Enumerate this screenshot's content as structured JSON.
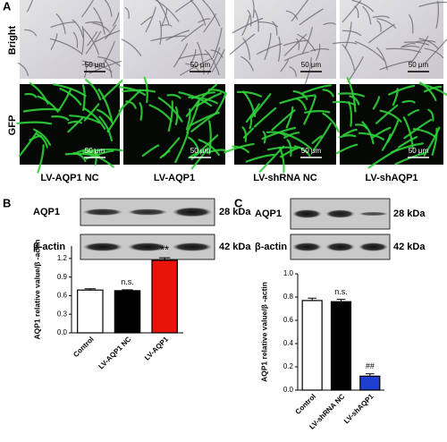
{
  "panel_a": {
    "label": "A",
    "row_labels": [
      "Bright",
      "GFP"
    ],
    "scale_bar": "50 μm",
    "columns": [
      "LV-AQP1 NC",
      "LV-AQP1",
      "LV-shRNA NC",
      "LV-shAQP1"
    ]
  },
  "panel_b": {
    "label": "B",
    "blots": [
      {
        "name": "AQP1",
        "size": "28 kDa"
      },
      {
        "name": "β-actin",
        "size": "42 kDa"
      }
    ]
  },
  "panel_c": {
    "label": "C",
    "blots": [
      {
        "name": "AQP1",
        "size": "28 kDa"
      },
      {
        "name": "β-actin",
        "size": "42 kDa"
      }
    ]
  },
  "chart_data": [
    {
      "type": "bar",
      "y_label": "AQP1 relative value/β -actin",
      "categories": [
        "Control",
        "LV-AQP1 NC",
        "LV-AQP1"
      ],
      "values": [
        0.69,
        0.68,
        1.17
      ],
      "errors": [
        0.02,
        0.015,
        0.04
      ],
      "colors": [
        "#ffffff",
        "#000000",
        "#e8140c"
      ],
      "annotations": [
        {
          "index": 1,
          "text": "n.s."
        },
        {
          "index": 2,
          "text": "**"
        }
      ],
      "ylim": [
        0,
        1.4
      ],
      "yticks": [
        {
          "value": 0,
          "label": "0.0"
        },
        0.3,
        0.6,
        0.9,
        1.2
      ]
    },
    {
      "type": "bar",
      "y_label": "AQP1 relative value/β -actin",
      "categories": [
        "Control",
        "LV-shRNA NC",
        "LV-shAQP1"
      ],
      "values": [
        0.77,
        0.76,
        0.12
      ],
      "errors": [
        0.02,
        0.02,
        0.02
      ],
      "colors": [
        "#ffffff",
        "#000000",
        "#1d3ed0"
      ],
      "annotations": [
        {
          "index": 1,
          "text": "n.s."
        },
        {
          "index": 2,
          "text": "##"
        }
      ],
      "ylim": [
        0,
        1.0
      ],
      "yticks": [
        {
          "value": 0,
          "label": "0.0"
        },
        0.2,
        0.4,
        0.6,
        0.8,
        {
          "value": 1,
          "label": "1.0"
        }
      ]
    }
  ]
}
